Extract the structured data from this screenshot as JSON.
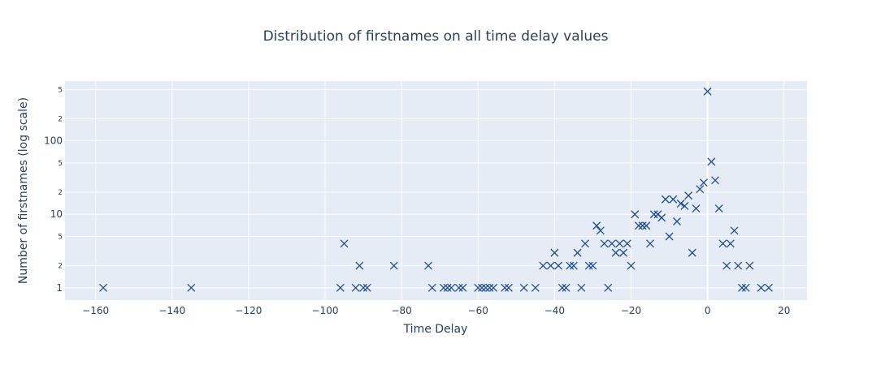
{
  "chart_data": {
    "type": "scatter",
    "title": "Distribution of firstnames on all time delay values",
    "xlabel": "Time Delay",
    "ylabel": "Number of firstnames (log scale)",
    "x_ticks": [
      "−160",
      "−140",
      "−120",
      "−100",
      "−80",
      "−60",
      "−40",
      "−20",
      "0",
      "20"
    ],
    "y_major_ticks": [
      "1",
      "10",
      "100"
    ],
    "y_minor_ticks": [
      "2",
      "5",
      "2",
      "5",
      "2",
      "5"
    ],
    "xlim": [
      -168,
      26
    ],
    "ylim_log": [
      0.68,
      650
    ],
    "y_scale": "log",
    "grid": true,
    "marker": "x",
    "marker_color": "#1f4e8c",
    "plot_background": "#e5ecf6",
    "series": [
      {
        "points": [
          [
            -158,
            1
          ],
          [
            -135,
            1
          ],
          [
            -96,
            1
          ],
          [
            -95,
            4
          ],
          [
            -92,
            1
          ],
          [
            -91,
            2
          ],
          [
            -90,
            1
          ],
          [
            -89,
            1
          ],
          [
            -82,
            2
          ],
          [
            -73,
            2
          ],
          [
            -72,
            1
          ],
          [
            -69,
            1
          ],
          [
            -68,
            1
          ],
          [
            -67,
            1
          ],
          [
            -65,
            1
          ],
          [
            -64,
            1
          ],
          [
            -60,
            1
          ],
          [
            -59,
            1
          ],
          [
            -58,
            1
          ],
          [
            -57,
            1
          ],
          [
            -56,
            1
          ],
          [
            -53,
            1
          ],
          [
            -52,
            1
          ],
          [
            -48,
            1
          ],
          [
            -45,
            1
          ],
          [
            -43,
            2
          ],
          [
            -41,
            2
          ],
          [
            -40,
            3
          ],
          [
            -39,
            2
          ],
          [
            -38,
            1
          ],
          [
            -37,
            1
          ],
          [
            -36,
            2
          ],
          [
            -35,
            2
          ],
          [
            -34,
            3
          ],
          [
            -33,
            1
          ],
          [
            -32,
            4
          ],
          [
            -31,
            2
          ],
          [
            -30,
            2
          ],
          [
            -29,
            7
          ],
          [
            -28,
            6
          ],
          [
            -27,
            4
          ],
          [
            -26,
            1
          ],
          [
            -25,
            4
          ],
          [
            -24,
            3
          ],
          [
            -23,
            4
          ],
          [
            -22,
            3
          ],
          [
            -21,
            4
          ],
          [
            -20,
            2
          ],
          [
            -19,
            10
          ],
          [
            -18,
            7
          ],
          [
            -17,
            7
          ],
          [
            -16,
            7
          ],
          [
            -15,
            4
          ],
          [
            -14,
            10
          ],
          [
            -13,
            10
          ],
          [
            -12,
            9
          ],
          [
            -11,
            16
          ],
          [
            -10,
            5
          ],
          [
            -9,
            16
          ],
          [
            -8,
            8
          ],
          [
            -7,
            14
          ],
          [
            -6,
            13
          ],
          [
            -5,
            18
          ],
          [
            -4,
            3
          ],
          [
            -3,
            12
          ],
          [
            -2,
            22
          ],
          [
            -1,
            27
          ],
          [
            0,
            470
          ],
          [
            1,
            52
          ],
          [
            2,
            29
          ],
          [
            3,
            12
          ],
          [
            4,
            4
          ],
          [
            5,
            2
          ],
          [
            6,
            4
          ],
          [
            7,
            6
          ],
          [
            8,
            2
          ],
          [
            9,
            1
          ],
          [
            10,
            1
          ],
          [
            11,
            2
          ],
          [
            14,
            1
          ],
          [
            16,
            1
          ]
        ]
      }
    ]
  }
}
